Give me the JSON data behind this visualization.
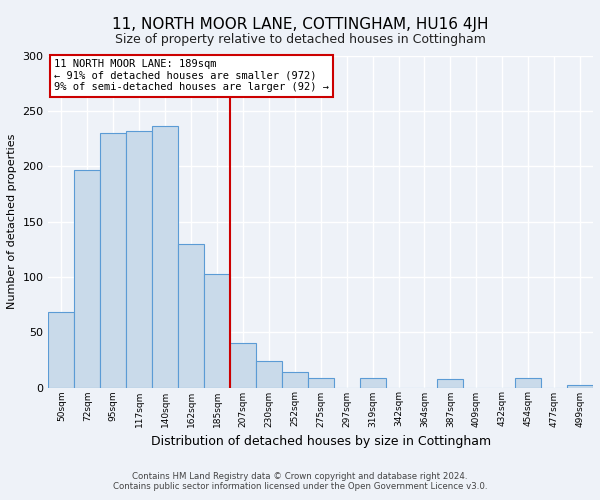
{
  "title": "11, NORTH MOOR LANE, COTTINGHAM, HU16 4JH",
  "subtitle": "Size of property relative to detached houses in Cottingham",
  "xlabel": "Distribution of detached houses by size in Cottingham",
  "ylabel": "Number of detached properties",
  "bin_labels": [
    "50sqm",
    "72sqm",
    "95sqm",
    "117sqm",
    "140sqm",
    "162sqm",
    "185sqm",
    "207sqm",
    "230sqm",
    "252sqm",
    "275sqm",
    "297sqm",
    "319sqm",
    "342sqm",
    "364sqm",
    "387sqm",
    "409sqm",
    "432sqm",
    "454sqm",
    "477sqm",
    "499sqm"
  ],
  "bar_values": [
    68,
    197,
    230,
    232,
    237,
    130,
    103,
    40,
    24,
    14,
    9,
    0,
    9,
    0,
    0,
    8,
    0,
    0,
    9,
    0,
    2
  ],
  "bar_color": "#c9daea",
  "bar_edge_color": "#5b9bd5",
  "vline_x_index": 6,
  "vline_color": "#cc0000",
  "annotation_text": "11 NORTH MOOR LANE: 189sqm\n← 91% of detached houses are smaller (972)\n9% of semi-detached houses are larger (92) →",
  "annotation_box_color": "#ffffff",
  "annotation_box_edgecolor": "#cc0000",
  "ylim": [
    0,
    300
  ],
  "yticks": [
    0,
    50,
    100,
    150,
    200,
    250,
    300
  ],
  "footer1": "Contains HM Land Registry data © Crown copyright and database right 2024.",
  "footer2": "Contains public sector information licensed under the Open Government Licence v3.0.",
  "bg_color": "#eef2f8",
  "grid_color": "#ffffff",
  "title_fontsize": 11,
  "subtitle_fontsize": 9,
  "xlabel_fontsize": 9,
  "ylabel_fontsize": 8
}
